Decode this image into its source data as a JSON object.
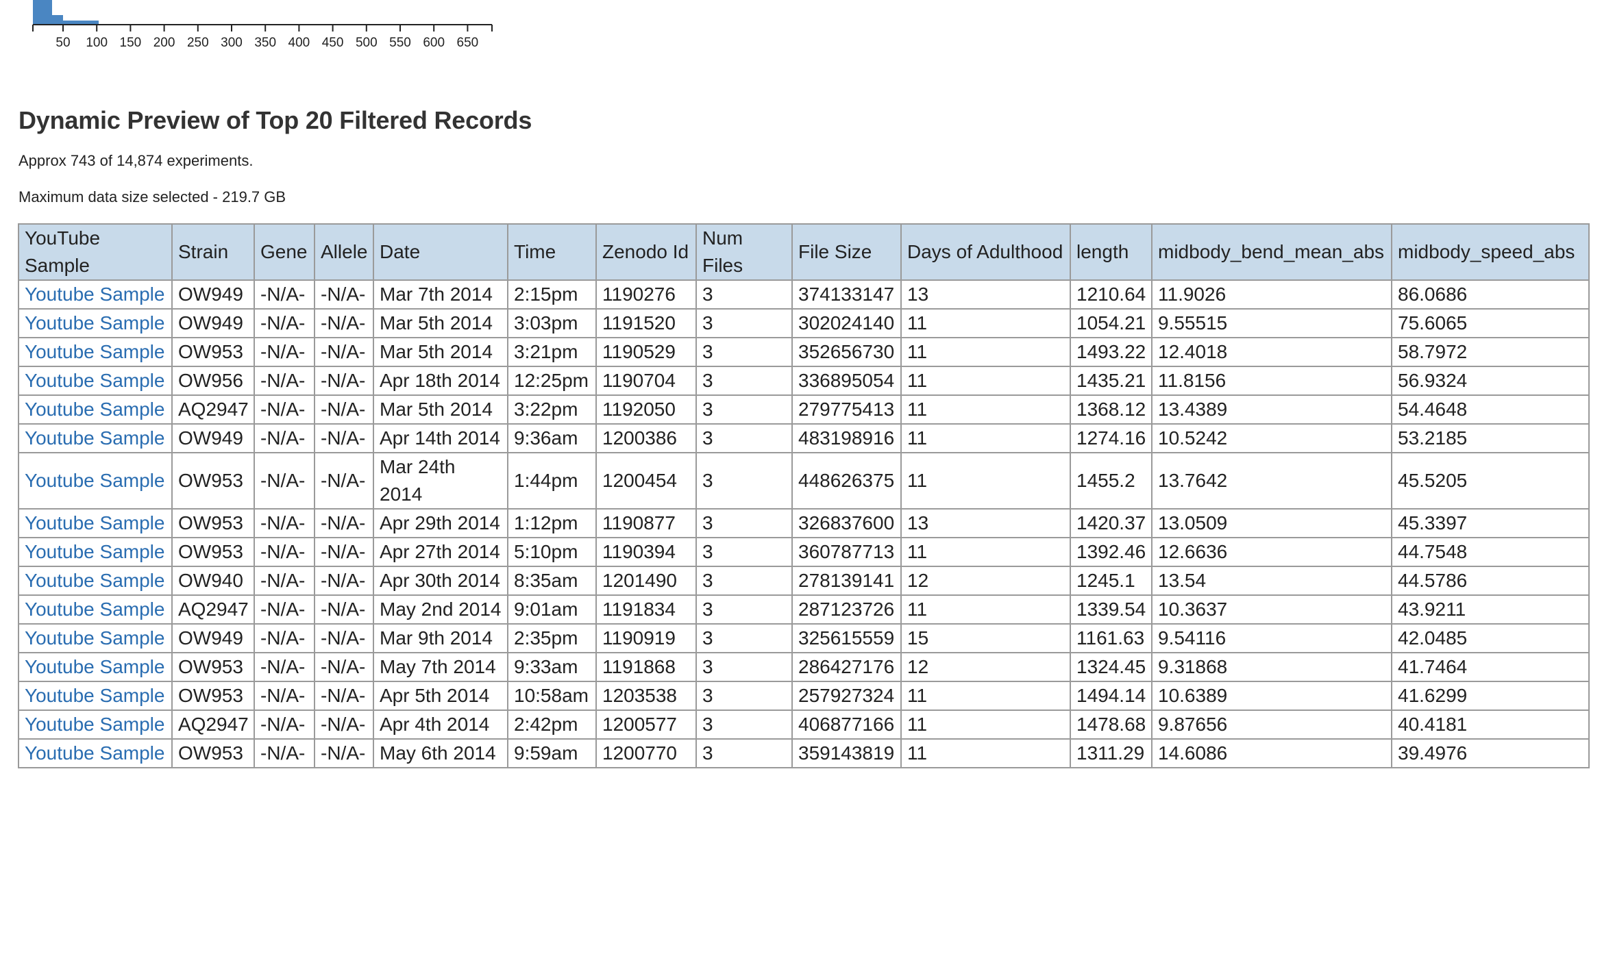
{
  "histogram": {
    "tick_labels": [
      "50",
      "100",
      "150",
      "200",
      "250",
      "300",
      "350",
      "400",
      "450",
      "500",
      "550",
      "600",
      "650"
    ],
    "bar_color": "#4a86c2"
  },
  "preview": {
    "title": "Dynamic Preview of Top 20 Filtered Records",
    "count_text": "Approx 743 of 14,874 experiments.",
    "size_text": "Maximum data size selected - 219.7 GB"
  },
  "table": {
    "columns": [
      "YouTube Sample",
      "Strain",
      "Gene",
      "Allele",
      "Date",
      "Time",
      "Zenodo Id",
      "Num Files",
      "File Size",
      "Days of Adulthood",
      "length",
      "midbody_bend_mean_abs",
      "midbody_speed_abs"
    ],
    "rows": [
      [
        "Youtube Sample",
        "OW949",
        "-N/A-",
        "-N/A-",
        "Mar 7th 2014",
        "2:15pm",
        "1190276",
        "3",
        "374133147",
        "13",
        "1210.64",
        "11.9026",
        "86.0686"
      ],
      [
        "Youtube Sample",
        "OW949",
        "-N/A-",
        "-N/A-",
        "Mar 5th 2014",
        "3:03pm",
        "1191520",
        "3",
        "302024140",
        "11",
        "1054.21",
        "9.55515",
        "75.6065"
      ],
      [
        "Youtube Sample",
        "OW953",
        "-N/A-",
        "-N/A-",
        "Mar 5th 2014",
        "3:21pm",
        "1190529",
        "3",
        "352656730",
        "11",
        "1493.22",
        "12.4018",
        "58.7972"
      ],
      [
        "Youtube Sample",
        "OW956",
        "-N/A-",
        "-N/A-",
        "Apr 18th 2014",
        "12:25pm",
        "1190704",
        "3",
        "336895054",
        "11",
        "1435.21",
        "11.8156",
        "56.9324"
      ],
      [
        "Youtube Sample",
        "AQ2947",
        "-N/A-",
        "-N/A-",
        "Mar 5th 2014",
        "3:22pm",
        "1192050",
        "3",
        "279775413",
        "11",
        "1368.12",
        "13.4389",
        "54.4648"
      ],
      [
        "Youtube Sample",
        "OW949",
        "-N/A-",
        "-N/A-",
        "Apr 14th 2014",
        "9:36am",
        "1200386",
        "3",
        "483198916",
        "11",
        "1274.16",
        "10.5242",
        "53.2185"
      ],
      [
        "Youtube Sample",
        "OW953",
        "-N/A-",
        "-N/A-",
        "Mar 24th 2014",
        "1:44pm",
        "1200454",
        "3",
        "448626375",
        "11",
        "1455.2",
        "13.7642",
        "45.5205"
      ],
      [
        "Youtube Sample",
        "OW953",
        "-N/A-",
        "-N/A-",
        "Apr 29th 2014",
        "1:12pm",
        "1190877",
        "3",
        "326837600",
        "13",
        "1420.37",
        "13.0509",
        "45.3397"
      ],
      [
        "Youtube Sample",
        "OW953",
        "-N/A-",
        "-N/A-",
        "Apr 27th 2014",
        "5:10pm",
        "1190394",
        "3",
        "360787713",
        "11",
        "1392.46",
        "12.6636",
        "44.7548"
      ],
      [
        "Youtube Sample",
        "OW940",
        "-N/A-",
        "-N/A-",
        "Apr 30th 2014",
        "8:35am",
        "1201490",
        "3",
        "278139141",
        "12",
        "1245.1",
        "13.54",
        "44.5786"
      ],
      [
        "Youtube Sample",
        "AQ2947",
        "-N/A-",
        "-N/A-",
        "May 2nd 2014",
        "9:01am",
        "1191834",
        "3",
        "287123726",
        "11",
        "1339.54",
        "10.3637",
        "43.9211"
      ],
      [
        "Youtube Sample",
        "OW949",
        "-N/A-",
        "-N/A-",
        "Mar 9th 2014",
        "2:35pm",
        "1190919",
        "3",
        "325615559",
        "15",
        "1161.63",
        "9.54116",
        "42.0485"
      ],
      [
        "Youtube Sample",
        "OW953",
        "-N/A-",
        "-N/A-",
        "May 7th 2014",
        "9:33am",
        "1191868",
        "3",
        "286427176",
        "12",
        "1324.45",
        "9.31868",
        "41.7464"
      ],
      [
        "Youtube Sample",
        "OW953",
        "-N/A-",
        "-N/A-",
        "Apr 5th 2014",
        "10:58am",
        "1203538",
        "3",
        "257927324",
        "11",
        "1494.14",
        "10.6389",
        "41.6299"
      ],
      [
        "Youtube Sample",
        "AQ2947",
        "-N/A-",
        "-N/A-",
        "Apr 4th 2014",
        "2:42pm",
        "1200577",
        "3",
        "406877166",
        "11",
        "1478.68",
        "9.87656",
        "40.4181"
      ],
      [
        "Youtube Sample",
        "OW953",
        "-N/A-",
        "-N/A-",
        "May 6th 2014",
        "9:59am",
        "1200770",
        "3",
        "359143819",
        "11",
        "1311.29",
        "14.6086",
        "39.4976"
      ]
    ]
  }
}
